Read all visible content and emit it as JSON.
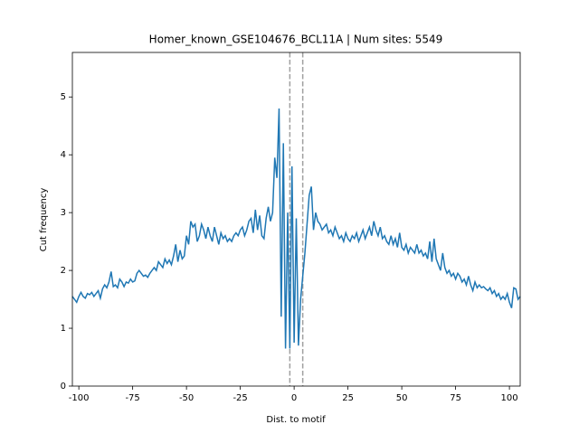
{
  "chart_data": {
    "type": "line",
    "title": "Homer_known_GSE104676_BCL11A | Num sites: 5549",
    "x_label": "Dist. to motif",
    "y_label": "Cut frequency",
    "xlim": [
      -103,
      105
    ],
    "ylim": [
      0,
      5.77
    ],
    "xticks": [
      -100,
      -75,
      -50,
      -25,
      0,
      25,
      50,
      75,
      100
    ],
    "yticks": [
      0,
      1,
      2,
      3,
      4,
      5
    ],
    "vlines": [
      -2,
      4
    ],
    "vline_color": "#a0a0a0",
    "x": [
      -103,
      -102,
      -101,
      -100,
      -99,
      -98,
      -97,
      -96,
      -95,
      -94,
      -93,
      -92,
      -91,
      -90,
      -89,
      -88,
      -87,
      -86,
      -85,
      -84,
      -83,
      -82,
      -81,
      -80,
      -79,
      -78,
      -77,
      -76,
      -75,
      -74,
      -73,
      -72,
      -71,
      -70,
      -69,
      -68,
      -67,
      -66,
      -65,
      -64,
      -63,
      -62,
      -61,
      -60,
      -59,
      -58,
      -57,
      -56,
      -55,
      -54,
      -53,
      -52,
      -51,
      -50,
      -49,
      -48,
      -47,
      -46,
      -45,
      -44,
      -43,
      -42,
      -41,
      -40,
      -39,
      -38,
      -37,
      -36,
      -35,
      -34,
      -33,
      -32,
      -31,
      -30,
      -29,
      -28,
      -27,
      -26,
      -25,
      -24,
      -23,
      -22,
      -21,
      -20,
      -19,
      -18,
      -17,
      -16,
      -15,
      -14,
      -13,
      -12,
      -11,
      -10,
      -9,
      -8,
      -7,
      -6,
      -5,
      -4,
      -3,
      -2,
      -1,
      0,
      1,
      2,
      3,
      4,
      5,
      6,
      7,
      8,
      9,
      10,
      11,
      12,
      13,
      14,
      15,
      16,
      17,
      18,
      19,
      20,
      21,
      22,
      23,
      24,
      25,
      26,
      27,
      28,
      29,
      30,
      31,
      32,
      33,
      34,
      35,
      36,
      37,
      38,
      39,
      40,
      41,
      42,
      43,
      44,
      45,
      46,
      47,
      48,
      49,
      50,
      51,
      52,
      53,
      54,
      55,
      56,
      57,
      58,
      59,
      60,
      61,
      62,
      63,
      64,
      65,
      66,
      67,
      68,
      69,
      70,
      71,
      72,
      73,
      74,
      75,
      76,
      77,
      78,
      79,
      80,
      81,
      82,
      83,
      84,
      85,
      86,
      87,
      88,
      89,
      90,
      91,
      92,
      93,
      94,
      95,
      96,
      97,
      98,
      99,
      100,
      101,
      102,
      103,
      104,
      105
    ],
    "series": [
      {
        "color": "#1f77b4",
        "values": [
          1.55,
          1.5,
          1.45,
          1.55,
          1.62,
          1.55,
          1.52,
          1.6,
          1.58,
          1.62,
          1.55,
          1.6,
          1.65,
          1.52,
          1.68,
          1.75,
          1.7,
          1.8,
          1.98,
          1.72,
          1.75,
          1.7,
          1.85,
          1.8,
          1.72,
          1.8,
          1.78,
          1.85,
          1.8,
          1.82,
          1.95,
          2.0,
          1.95,
          1.9,
          1.92,
          1.88,
          1.95,
          2.0,
          2.05,
          2.0,
          2.15,
          2.1,
          2.05,
          2.2,
          2.12,
          2.18,
          2.1,
          2.25,
          2.45,
          2.15,
          2.35,
          2.2,
          2.25,
          2.6,
          2.45,
          2.85,
          2.75,
          2.8,
          2.5,
          2.6,
          2.8,
          2.7,
          2.55,
          2.75,
          2.6,
          2.5,
          2.75,
          2.6,
          2.45,
          2.65,
          2.55,
          2.6,
          2.5,
          2.55,
          2.5,
          2.6,
          2.65,
          2.6,
          2.7,
          2.75,
          2.6,
          2.7,
          2.85,
          2.9,
          2.65,
          3.05,
          2.7,
          2.95,
          2.6,
          2.55,
          2.9,
          3.1,
          2.85,
          3.0,
          3.95,
          3.6,
          4.8,
          1.2,
          4.2,
          0.65,
          3.0,
          0.65,
          3.8,
          0.75,
          2.9,
          0.7,
          1.5,
          1.9,
          2.3,
          2.8,
          3.3,
          3.45,
          2.7,
          3.0,
          2.85,
          2.8,
          2.7,
          2.75,
          2.8,
          2.65,
          2.7,
          2.6,
          2.75,
          2.65,
          2.55,
          2.6,
          2.5,
          2.65,
          2.55,
          2.5,
          2.6,
          2.55,
          2.65,
          2.5,
          2.6,
          2.7,
          2.55,
          2.65,
          2.75,
          2.6,
          2.85,
          2.7,
          2.6,
          2.75,
          2.55,
          2.6,
          2.5,
          2.45,
          2.6,
          2.45,
          2.55,
          2.4,
          2.65,
          2.4,
          2.35,
          2.45,
          2.3,
          2.4,
          2.35,
          2.3,
          2.45,
          2.3,
          2.35,
          2.25,
          2.3,
          2.2,
          2.5,
          2.15,
          2.55,
          2.2,
          2.1,
          2.0,
          2.3,
          2.05,
          1.95,
          2.0,
          1.9,
          1.95,
          1.85,
          1.95,
          1.9,
          1.8,
          1.85,
          1.75,
          1.9,
          1.75,
          1.65,
          1.8,
          1.7,
          1.75,
          1.7,
          1.72,
          1.68,
          1.65,
          1.7,
          1.6,
          1.65,
          1.55,
          1.6,
          1.5,
          1.55,
          1.5,
          1.6,
          1.45,
          1.35,
          1.7,
          1.68,
          1.5,
          1.55
        ]
      }
    ]
  }
}
